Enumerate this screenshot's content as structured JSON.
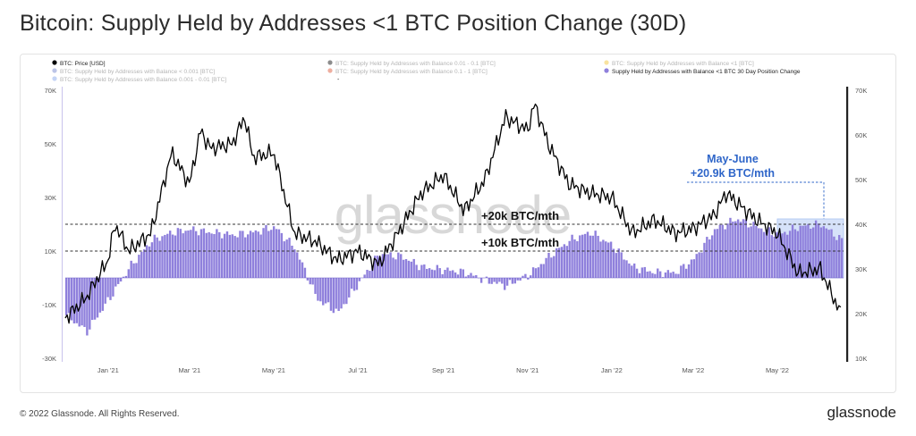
{
  "page": {
    "title": "Bitcoin: Supply Held by Addresses <1 BTC Position Change  (30D)",
    "copyright": "© 2022 Glassnode. All Rights Reserved.",
    "brand": "glassnode",
    "watermark": "glassnode"
  },
  "colors": {
    "bar": "#8f80dc",
    "bar_edge": "#6f5fc8",
    "price": "#000000",
    "highlight": "#c9d9f7",
    "highlight_edge": "#8fb0ec",
    "annotation_blue": "#2f66c9"
  },
  "chart_data": {
    "type": "bar+line",
    "legend": [
      {
        "label": "BTC: Price [USD]",
        "color": "#000000",
        "faded": false
      },
      {
        "label": "BTC: Supply Held by Addresses with Balance < 0.001 [BTC]",
        "color": "#6b7cc9",
        "faded": true
      },
      {
        "label": "BTC: Supply Held by Addresses with Balance 0.001 - 0.01 [BTC]",
        "color": "#7da0e8",
        "faded": true
      },
      {
        "label": "BTC: Supply Held by Addresses with Balance 0.01 - 0.1 [BTC]",
        "color": "#000000",
        "faded": true
      },
      {
        "label": "BTC: Supply Held by Addresses with Balance 0.1 - 1 [BTC]",
        "color": "#d94c2b",
        "faded": true
      },
      {
        "label": "BTC: Supply Held by Addresses with Balance <1 [BTC]",
        "color": "#f0c22d",
        "faded": true
      },
      {
        "label": "Supply Held by Addresses with Balance <1 BTC 30 Day Position Change",
        "color": "#8f80dc",
        "faded": false
      }
    ],
    "x_ticks": [
      "Jan '21",
      "Mar '21",
      "May '21",
      "Jul '21",
      "Sep '21",
      "Nov '21",
      "Jan '22",
      "Mar '22",
      "May '22"
    ],
    "left_axis": {
      "ticks": [
        "70K",
        "50K",
        "30K",
        "10K",
        "-10K",
        "-30K"
      ],
      "values": [
        70000,
        50000,
        30000,
        10000,
        -10000,
        -30000
      ],
      "ylim": [
        -30000,
        70000
      ]
    },
    "right_axis": {
      "ticks": [
        "70K",
        "60K",
        "50K",
        "40K",
        "30K",
        "20K",
        "10K"
      ],
      "values": [
        70000,
        60000,
        50000,
        40000,
        30000,
        20000,
        10000
      ],
      "ylim": [
        10000,
        70000
      ]
    },
    "x_range": [
      "2020-12-05",
      "2022-06-22"
    ],
    "position_change_30d": {
      "dates": [
        "2020-12-05",
        "2020-12-20",
        "2021-01-05",
        "2021-01-20",
        "2021-02-05",
        "2021-02-20",
        "2021-03-05",
        "2021-03-20",
        "2021-04-05",
        "2021-04-20",
        "2021-05-05",
        "2021-05-20",
        "2021-06-05",
        "2021-06-20",
        "2021-07-05",
        "2021-07-20",
        "2021-08-05",
        "2021-08-20",
        "2021-09-05",
        "2021-09-20",
        "2021-10-05",
        "2021-10-20",
        "2021-11-05",
        "2021-11-20",
        "2021-12-05",
        "2021-12-20",
        "2022-01-05",
        "2022-01-20",
        "2022-02-05",
        "2022-02-20",
        "2022-03-05",
        "2022-03-20",
        "2022-04-05",
        "2022-04-20",
        "2022-05-05",
        "2022-05-20",
        "2022-06-05",
        "2022-06-20"
      ],
      "values": [
        -14000,
        -20000,
        -8000,
        4000,
        14000,
        17000,
        18000,
        17000,
        16000,
        17000,
        19000,
        11000,
        -8000,
        -13000,
        -2000,
        9000,
        8000,
        4000,
        3000,
        2000,
        -1000,
        -3000,
        1000,
        8000,
        14000,
        17000,
        12000,
        4000,
        2000,
        2000,
        7000,
        18000,
        22000,
        19000,
        16000,
        19000,
        20000,
        14000
      ]
    },
    "btc_price_usd": {
      "dates": [
        "2020-12-05",
        "2020-12-20",
        "2021-01-05",
        "2021-01-10",
        "2021-01-20",
        "2021-02-05",
        "2021-02-20",
        "2021-03-05",
        "2021-03-13",
        "2021-03-20",
        "2021-04-05",
        "2021-04-14",
        "2021-04-20",
        "2021-05-05",
        "2021-05-20",
        "2021-06-05",
        "2021-06-20",
        "2021-07-05",
        "2021-07-20",
        "2021-08-05",
        "2021-08-20",
        "2021-09-05",
        "2021-09-20",
        "2021-10-05",
        "2021-10-20",
        "2021-11-05",
        "2021-11-10",
        "2021-11-20",
        "2021-12-05",
        "2021-12-20",
        "2022-01-05",
        "2022-01-20",
        "2022-02-05",
        "2022-02-20",
        "2022-03-05",
        "2022-03-20",
        "2022-03-29",
        "2022-04-05",
        "2022-04-20",
        "2022-05-05",
        "2022-05-20",
        "2022-06-05",
        "2022-06-20"
      ],
      "values": [
        19000,
        23500,
        32000,
        40000,
        34000,
        38000,
        56000,
        49000,
        61000,
        57000,
        58000,
        64000,
        55000,
        56000,
        38000,
        36000,
        32000,
        34000,
        31000,
        39000,
        47000,
        51000,
        43000,
        50000,
        64000,
        61000,
        67000,
        58000,
        49000,
        47000,
        46000,
        38000,
        41000,
        38000,
        39000,
        42000,
        47000,
        45000,
        41000,
        38000,
        29000,
        30000,
        20000
      ]
    },
    "reference_lines": [
      {
        "value": 20000,
        "label": "+20k BTC/mth"
      },
      {
        "value": 10000,
        "label": "+10k BTC/mth"
      }
    ],
    "annotation": {
      "title": "May-June",
      "text": "+20.9k BTC/mth",
      "from": "2022-05-05",
      "to": "2022-06-22"
    }
  }
}
